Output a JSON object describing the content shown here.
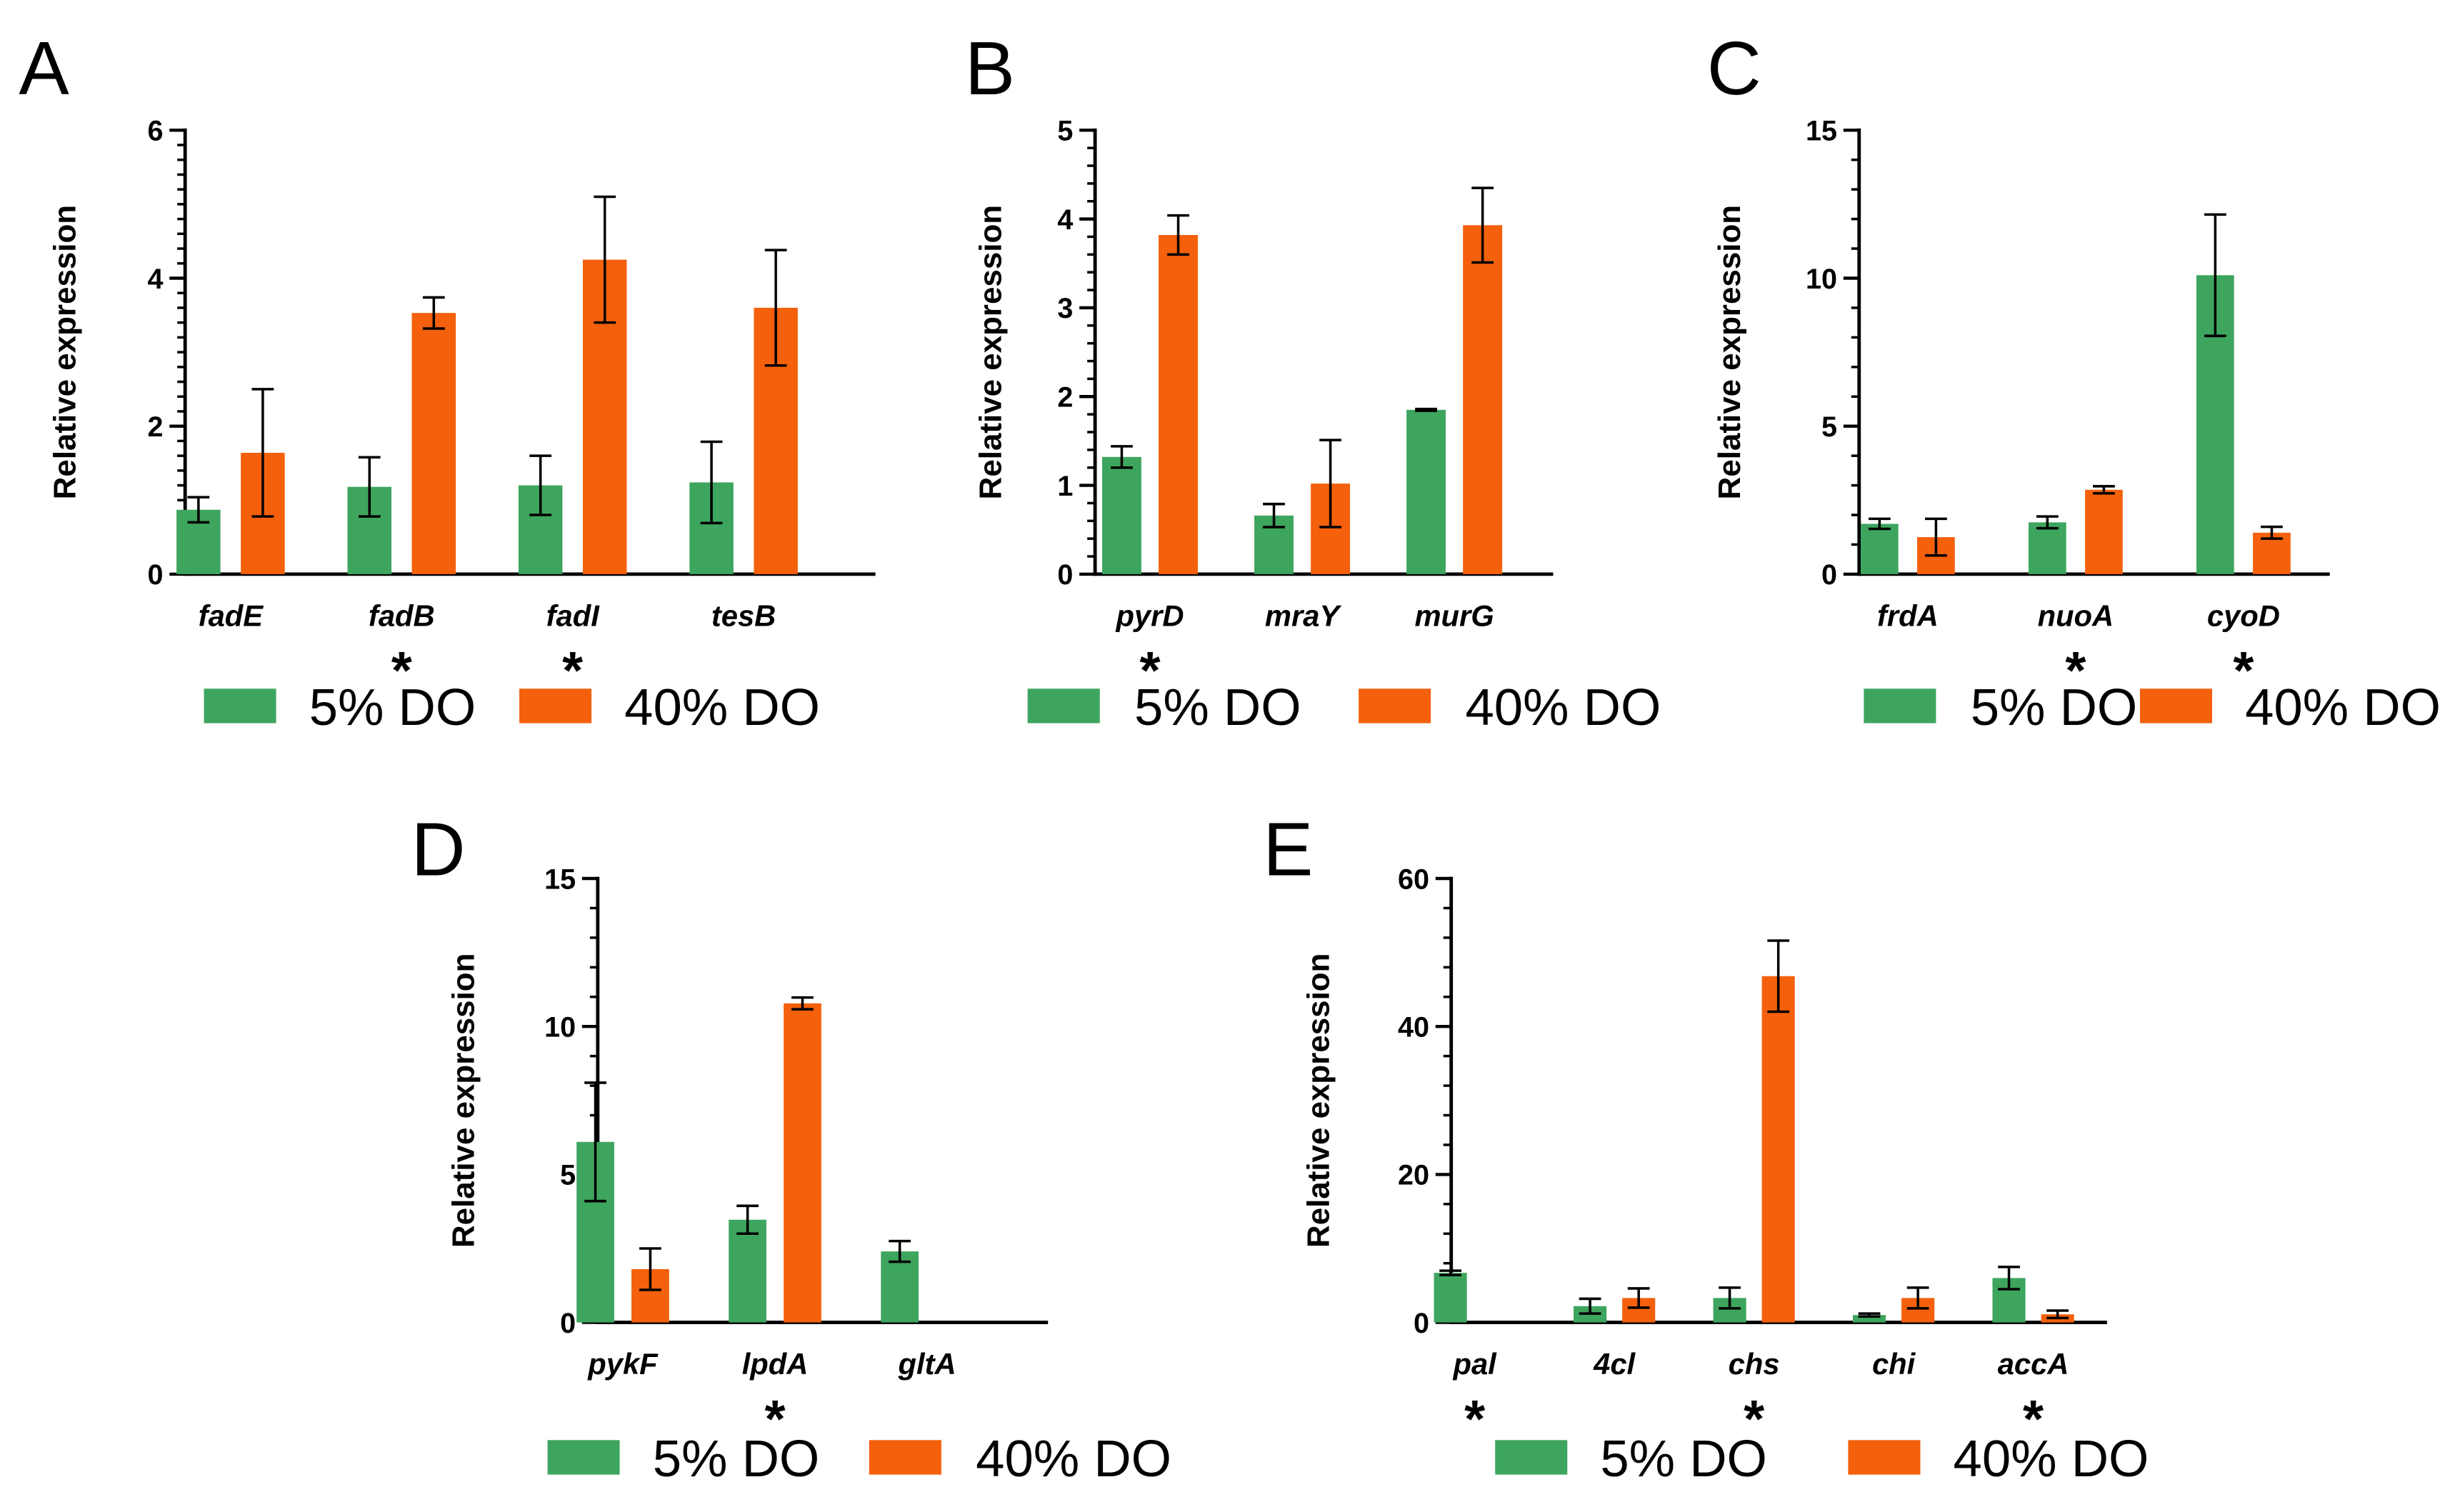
{
  "figure": {
    "colors": {
      "series_5": "#3ea55e",
      "series_40": "#f4600c",
      "axis": "#000000"
    }
  },
  "chart_data": [
    {
      "panel": "A",
      "type": "bar",
      "ylabel": "Relative expression",
      "ylim": [
        0,
        6
      ],
      "yticks": [
        0,
        2,
        4,
        6
      ],
      "ytick_labels": [
        "0",
        "2",
        "4",
        "6"
      ],
      "minor_step": 0.2,
      "categories": [
        "fadE",
        "fadB",
        "fadI",
        "tesB"
      ],
      "significant": [
        false,
        true,
        true,
        false
      ],
      "series": [
        {
          "name": "5% DO",
          "values": [
            0.87,
            1.18,
            1.2,
            1.24
          ],
          "errors": [
            0.17,
            0.4,
            0.4,
            0.55
          ]
        },
        {
          "name": "40% DO",
          "values": [
            1.64,
            3.53,
            4.25,
            3.6
          ],
          "errors": [
            0.86,
            0.21,
            0.85,
            0.78
          ]
        }
      ],
      "legend": [
        "5% DO",
        "40% DO"
      ],
      "star": "*"
    },
    {
      "panel": "B",
      "type": "bar",
      "ylabel": "Relative expression",
      "ylim": [
        0,
        5
      ],
      "yticks": [
        0,
        1,
        2,
        3,
        4,
        5
      ],
      "ytick_labels": [
        "0",
        "1",
        "2",
        "3",
        "4",
        "5"
      ],
      "minor_step": 0.2,
      "categories": [
        "pyrD",
        "mraY",
        "murG"
      ],
      "significant": [
        true,
        false,
        false
      ],
      "series": [
        {
          "name": "5% DO",
          "values": [
            1.32,
            0.66,
            1.85
          ],
          "errors": [
            0.12,
            0.13,
            0.01
          ]
        },
        {
          "name": "40% DO",
          "values": [
            3.82,
            1.02,
            3.93
          ],
          "errors": [
            0.22,
            0.49,
            0.42
          ]
        }
      ],
      "legend": [
        "5% DO",
        "40% DO"
      ],
      "star": "*"
    },
    {
      "panel": "C",
      "type": "bar",
      "ylabel": "Relative expression",
      "ylim": [
        0,
        15
      ],
      "yticks": [
        0,
        5,
        10,
        15
      ],
      "ytick_labels": [
        "0",
        "5",
        "10",
        "15"
      ],
      "minor_step": 1,
      "categories": [
        "frdA",
        "nuoA",
        "cyoD"
      ],
      "significant": [
        false,
        true,
        true
      ],
      "series": [
        {
          "name": "5% DO",
          "values": [
            1.7,
            1.75,
            10.1
          ],
          "errors": [
            0.17,
            0.2,
            2.05
          ]
        },
        {
          "name": "40% DO",
          "values": [
            1.25,
            2.85,
            1.4
          ],
          "errors": [
            0.62,
            0.12,
            0.2
          ]
        }
      ],
      "legend": [
        "5% DO",
        "40% DO"
      ],
      "star": "*"
    },
    {
      "panel": "D",
      "type": "bar",
      "ylabel": "Relative expression",
      "ylim": [
        0,
        15
      ],
      "yticks": [
        0,
        5,
        10,
        15
      ],
      "ytick_labels": [
        "0",
        "5",
        "10",
        "15"
      ],
      "minor_step": 1,
      "categories": [
        "pykF",
        "lpdA",
        "gltA"
      ],
      "significant": [
        false,
        true,
        false
      ],
      "series": [
        {
          "name": "5% DO",
          "values": [
            6.1,
            3.47,
            2.4
          ],
          "errors": [
            2.0,
            0.47,
            0.35
          ]
        },
        {
          "name": "40% DO",
          "values": [
            1.8,
            10.78,
            0
          ],
          "errors": [
            0.7,
            0.2,
            0
          ]
        }
      ],
      "legend": [
        "5% DO",
        "40% DO"
      ],
      "star": "*"
    },
    {
      "panel": "E",
      "type": "bar",
      "ylabel": "Relative expression",
      "ylim": [
        0,
        60
      ],
      "yticks": [
        0,
        20,
        40,
        60
      ],
      "ytick_labels": [
        "0",
        "20",
        "40",
        "60"
      ],
      "minor_step": 4,
      "categories": [
        "pal",
        "4cl",
        "chs",
        "chi",
        "accA"
      ],
      "significant": [
        true,
        false,
        true,
        false,
        true
      ],
      "series": [
        {
          "name": "5% DO",
          "values": [
            6.7,
            2.2,
            3.3,
            1.0,
            6.0
          ],
          "errors": [
            0.3,
            1.0,
            1.4,
            0.2,
            1.5
          ]
        },
        {
          "name": "40% DO",
          "values": [
            0,
            3.3,
            46.8,
            3.3,
            1.1
          ],
          "errors": [
            0,
            1.3,
            4.8,
            1.4,
            0.5
          ]
        }
      ],
      "legend": [
        "5% DO",
        "40% DO"
      ],
      "star": "*"
    }
  ]
}
